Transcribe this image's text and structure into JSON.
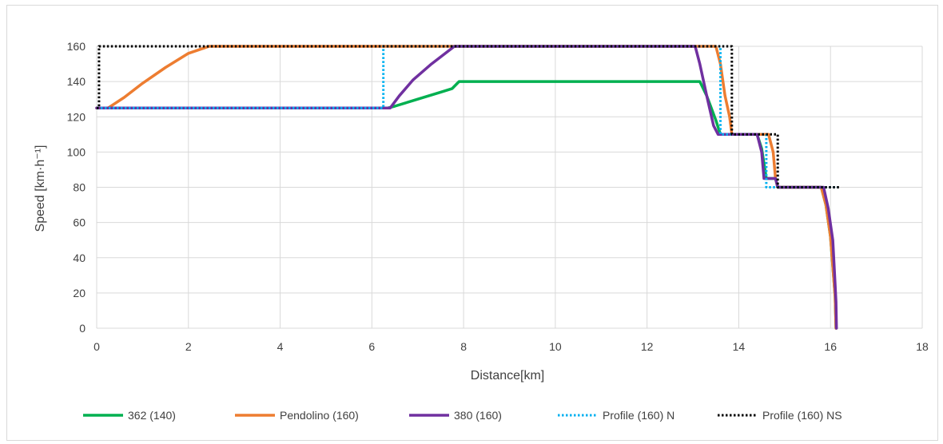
{
  "chart_data": {
    "type": "line",
    "xlabel": "Distance[km]",
    "ylabel": "Speed [km·h⁻¹]",
    "xlim": [
      0,
      18
    ],
    "ylim": [
      0,
      160
    ],
    "x_ticks": [
      0,
      2,
      4,
      6,
      8,
      10,
      12,
      14,
      16,
      18
    ],
    "y_ticks": [
      0,
      20,
      40,
      60,
      80,
      100,
      120,
      140,
      160
    ],
    "grid": true,
    "legend_position": "bottom",
    "series": [
      {
        "name": "362 (140)",
        "color": "#00b050",
        "style": "solid",
        "points": [
          [
            0,
            125
          ],
          [
            6.35,
            125
          ],
          [
            6.5,
            126
          ],
          [
            7.0,
            130
          ],
          [
            7.5,
            134
          ],
          [
            7.75,
            136
          ],
          [
            7.9,
            140
          ],
          [
            13.15,
            140
          ],
          [
            13.3,
            132
          ],
          [
            13.5,
            118
          ],
          [
            13.6,
            110
          ],
          [
            14.4,
            110
          ],
          [
            14.5,
            102
          ],
          [
            14.6,
            85
          ],
          [
            14.8,
            85
          ],
          [
            14.85,
            80
          ],
          [
            15.8,
            80
          ],
          [
            15.9,
            70
          ],
          [
            16.0,
            52
          ],
          [
            16.05,
            35
          ],
          [
            16.1,
            18
          ],
          [
            16.12,
            0
          ]
        ]
      },
      {
        "name": "Pendolino (160)",
        "color": "#ed7d31",
        "style": "solid",
        "points": [
          [
            0,
            125
          ],
          [
            0.25,
            125
          ],
          [
            0.6,
            131
          ],
          [
            1.0,
            139
          ],
          [
            1.5,
            148
          ],
          [
            2.0,
            156
          ],
          [
            2.45,
            160
          ],
          [
            13.5,
            160
          ],
          [
            13.6,
            150
          ],
          [
            13.7,
            132
          ],
          [
            13.8,
            120
          ],
          [
            13.85,
            110
          ],
          [
            14.65,
            110
          ],
          [
            14.75,
            100
          ],
          [
            14.8,
            85
          ],
          [
            14.85,
            80
          ],
          [
            15.8,
            80
          ],
          [
            15.9,
            70
          ],
          [
            16.0,
            52
          ],
          [
            16.05,
            35
          ],
          [
            16.1,
            18
          ],
          [
            16.12,
            0
          ]
        ]
      },
      {
        "name": "380 (160)",
        "color": "#7030a0",
        "style": "solid",
        "points": [
          [
            0,
            125
          ],
          [
            6.4,
            125
          ],
          [
            6.6,
            132
          ],
          [
            6.9,
            141
          ],
          [
            7.3,
            150
          ],
          [
            7.8,
            160
          ],
          [
            13.05,
            160
          ],
          [
            13.15,
            150
          ],
          [
            13.3,
            132
          ],
          [
            13.45,
            115
          ],
          [
            13.55,
            110
          ],
          [
            14.4,
            110
          ],
          [
            14.5,
            100
          ],
          [
            14.55,
            85
          ],
          [
            14.8,
            85
          ],
          [
            14.85,
            80
          ],
          [
            15.85,
            80
          ],
          [
            15.95,
            68
          ],
          [
            16.05,
            50
          ],
          [
            16.1,
            25
          ],
          [
            16.12,
            15
          ],
          [
            16.13,
            0
          ]
        ]
      },
      {
        "name": "Profile (160) N",
        "color": "#00b0f0",
        "style": "dotted",
        "points": [
          [
            0,
            125
          ],
          [
            6.25,
            125
          ],
          [
            6.25,
            160
          ],
          [
            13.6,
            160
          ],
          [
            13.6,
            110
          ],
          [
            14.6,
            110
          ],
          [
            14.6,
            80
          ],
          [
            16.15,
            80
          ]
        ]
      },
      {
        "name": "Profile (160) NS",
        "color": "#000000",
        "style": "dotted",
        "points": [
          [
            0,
            125
          ],
          [
            0.05,
            125
          ],
          [
            0.05,
            160
          ],
          [
            13.85,
            160
          ],
          [
            13.85,
            110
          ],
          [
            14.85,
            110
          ],
          [
            14.85,
            80
          ],
          [
            16.2,
            80
          ]
        ]
      }
    ]
  }
}
